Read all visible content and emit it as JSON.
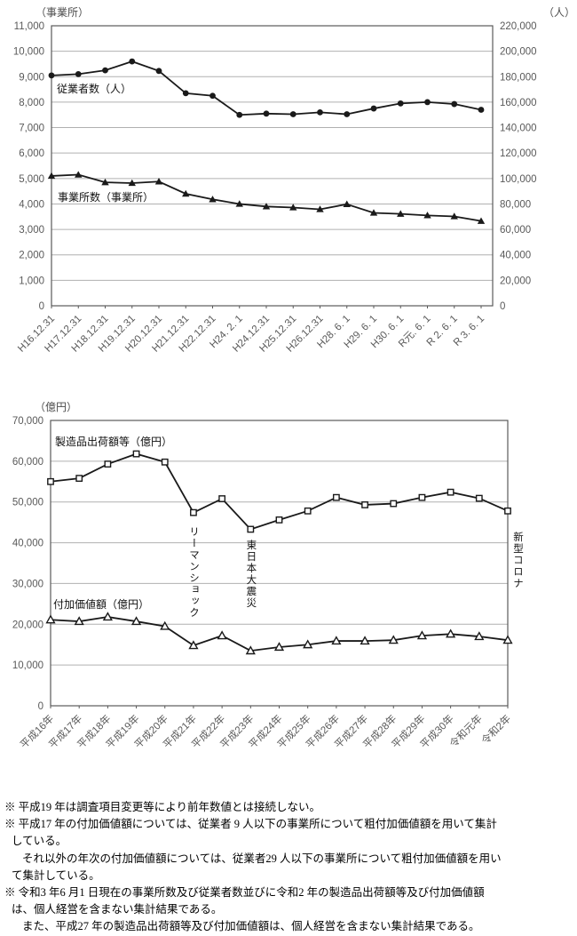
{
  "chart_data": [
    {
      "type": "line",
      "title": "",
      "categories": [
        "H16.12.31",
        "H17.12.31",
        "H18.12.31",
        "H19.12.31",
        "H20.12.31",
        "H21.12.31",
        "H22.12.31",
        "H24. 2. 1",
        "H24.12.31",
        "H25.12.31",
        "H26.12.31",
        "H28. 6. 1",
        "H29. 6. 1",
        "H30. 6. 1",
        "R元. 6. 1",
        "R 2. 6. 1",
        "R 3. 6. 1"
      ],
      "axes": {
        "left": {
          "unit": "（事業所）",
          "min": 0,
          "max": 11000,
          "step": 1000
        },
        "right": {
          "unit": "（人）",
          "min": 0,
          "max": 220000,
          "step": 20000
        }
      },
      "grid": true,
      "legend": "inline-labels",
      "series": [
        {
          "name": "従業者数（人）",
          "axis": "right",
          "marker": "circle-filled",
          "values": [
            181000,
            182000,
            185000,
            192000,
            184500,
            167000,
            165000,
            150000,
            151000,
            150500,
            152000,
            150500,
            155000,
            159000,
            160000,
            158500,
            154000
          ]
        },
        {
          "name": "事業所数（事業所）",
          "axis": "left",
          "marker": "triangle-filled",
          "values": [
            5100,
            5150,
            4850,
            4820,
            4880,
            4400,
            4180,
            4000,
            3900,
            3860,
            3790,
            3990,
            3650,
            3610,
            3550,
            3510,
            3330
          ]
        }
      ],
      "colors": {
        "line": "#1a1a1a",
        "grid": "#b0b0b0",
        "frame": "#595959",
        "tick_text": "#595959"
      }
    },
    {
      "type": "line",
      "title": "",
      "categories": [
        "平成16年",
        "平成17年",
        "平成18年",
        "平成19年",
        "平成20年",
        "平成21年",
        "平成22年",
        "平成23年",
        "平成24年",
        "平成25年",
        "平成26年",
        "平成27年",
        "平成28年",
        "平成29年",
        "平成30年",
        "令和元年",
        "令和2年"
      ],
      "axes": {
        "left": {
          "unit": "（億円）",
          "min": 0,
          "max": 70000,
          "step": 10000
        }
      },
      "grid": true,
      "legend": "inline-labels",
      "series": [
        {
          "name": "製造品出荷額等（億円）",
          "axis": "left",
          "marker": "square-open",
          "values": [
            55000,
            55800,
            59300,
            61800,
            59800,
            47400,
            50800,
            43300,
            45600,
            47800,
            51100,
            49300,
            49600,
            51100,
            52400,
            50900,
            47800
          ]
        },
        {
          "name": "付加価値額（億円）",
          "axis": "left",
          "marker": "triangle-open",
          "values": [
            21100,
            20700,
            21800,
            20700,
            19500,
            14800,
            17200,
            13500,
            14400,
            15000,
            15900,
            15900,
            16100,
            17200,
            17600,
            17000,
            16100
          ]
        }
      ],
      "annotations": [
        {
          "text": "リーマンショック",
          "at_category": "平成21年",
          "placement": "inside"
        },
        {
          "text": "東日本大震災",
          "at_category": "平成23年",
          "placement": "inside"
        },
        {
          "text": "新型コロナ",
          "at_category": "令和2年",
          "placement": "outside-right"
        }
      ],
      "colors": {
        "line": "#1a1a1a",
        "grid": "#b0b0b0",
        "frame": "#595959",
        "tick_text": "#595959"
      }
    }
  ],
  "footnotes": [
    {
      "text": "※ 平成19 年は調査項目変更等により前年数値とは接続しない。",
      "indent": 0
    },
    {
      "text": "※ 平成17 年の付加価値額については、従業者 9 人以下の事業所について粗付加価値額を用いて集計",
      "indent": 0
    },
    {
      "text": "している。",
      "indent": 1
    },
    {
      "text": "それ以外の年次の付加価値額については、従業者29 人以下の事業所について粗付加価値額を用い",
      "indent": 2
    },
    {
      "text": "て集計している。",
      "indent": 1
    },
    {
      "text": "※ 令和3 年6 月1 日現在の事業所数及び従業者数並びに令和2 年の製造品出荷額等及び付加価値額",
      "indent": 0
    },
    {
      "text": "は、個人経営を含まない集計結果である。",
      "indent": 1
    },
    {
      "text": "また、平成27 年の製造品出荷額等及び付加価値額は、個人経営を含まない集計結果である。",
      "indent": 2
    }
  ]
}
